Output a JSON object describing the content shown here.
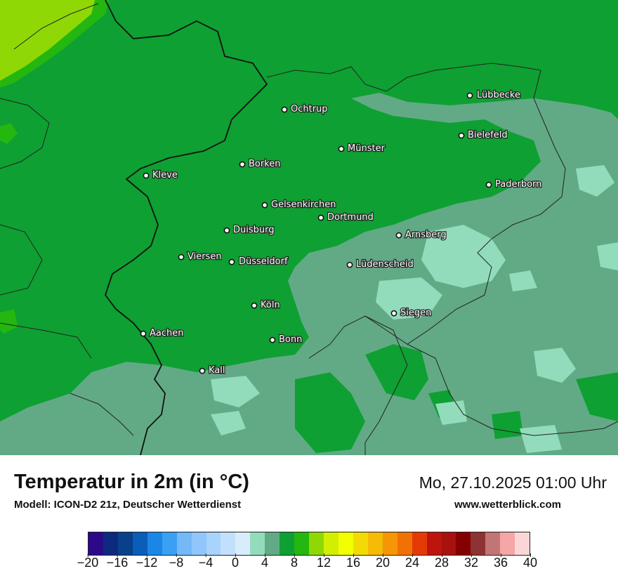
{
  "title": "Temperatur in 2m (in °C)",
  "subtitle": "Modell: ICON-D2 21z, Deutscher Wetterdienst",
  "datetime": "Mo, 27.10.2025 01:00 Uhr",
  "site": "www.wetterblick.com",
  "cities": [
    {
      "name": "Lübbecke"
    },
    {
      "name": "Ochtrup"
    },
    {
      "name": "Bielefeld"
    },
    {
      "name": "Münster"
    },
    {
      "name": "Borken"
    },
    {
      "name": "Kleve"
    },
    {
      "name": "Paderborn"
    },
    {
      "name": "Gelsenkirchen"
    },
    {
      "name": "Dortmund"
    },
    {
      "name": "Duisburg"
    },
    {
      "name": "Arnsberg"
    },
    {
      "name": "Viersen"
    },
    {
      "name": "Düsseldorf"
    },
    {
      "name": "Lüdenscheid"
    },
    {
      "name": "Köln"
    },
    {
      "name": "Siegen"
    },
    {
      "name": "Aachen"
    },
    {
      "name": "Bonn"
    },
    {
      "name": "Kall"
    }
  ],
  "legend": {
    "colors": [
      "#2b0a8a",
      "#0d2a7e",
      "#08418a",
      "#0a5db8",
      "#1a86e6",
      "#3aa0f4",
      "#74b8f8",
      "#90c6fb",
      "#a8d3fb",
      "#c2e0fb",
      "#d9ecfc",
      "#92dcbb",
      "#62aa86",
      "#0ea032",
      "#23b70f",
      "#8fd806",
      "#d2ef02",
      "#f2ff00",
      "#f3da04",
      "#f6bb04",
      "#f49606",
      "#f27106",
      "#e43b06",
      "#bd150d",
      "#a7120f",
      "#850000",
      "#8e3333",
      "#c17574",
      "#f4a7a5",
      "#fcd6d6"
    ],
    "ticks": [
      "−20",
      "−16",
      "−12",
      "−8",
      "−4",
      "0",
      "4",
      "8",
      "12",
      "16",
      "20",
      "24",
      "28",
      "32",
      "36",
      "40"
    ]
  }
}
